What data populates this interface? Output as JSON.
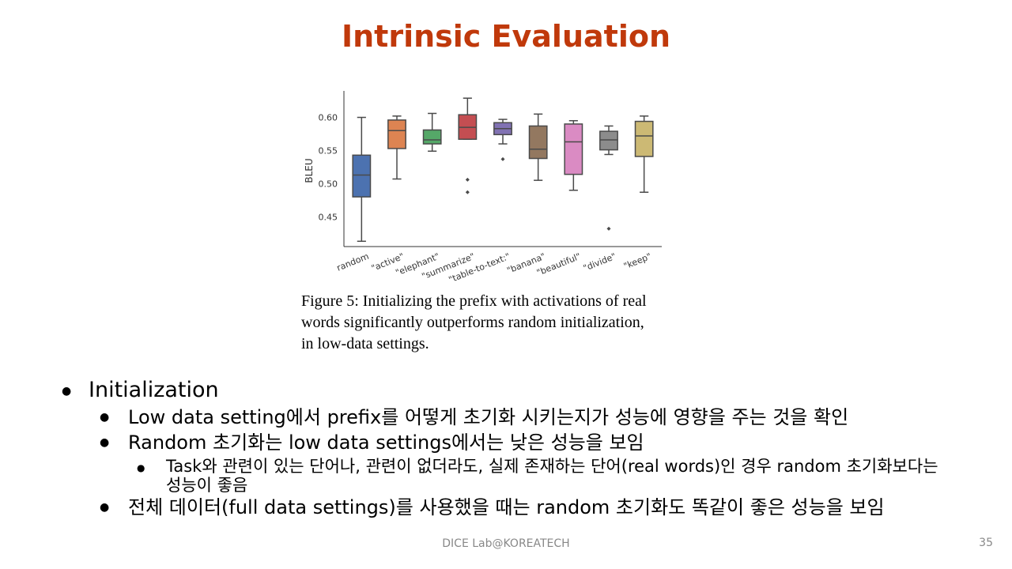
{
  "slide": {
    "title": "Intrinsic Evaluation",
    "footer": "DICE  Lab@KOREATECH",
    "page_number": "35"
  },
  "figure": {
    "caption_lines": [
      "Figure 5:  Initializing the prefix with activations of real",
      "words significantly outperforms random initialization,",
      "in low-data settings."
    ]
  },
  "bullets": {
    "b1": "Initialization",
    "b1_1": "Low data setting에서 prefix를 어떻게 초기화 시키는지가 성능에 영향을 주는 것을 확인",
    "b1_2": "Random 초기화는 low data settings에서는 낮은 성능을 보임",
    "b1_2_1": "Task와 관련이 있는 단어나, 관련이 없더라도, 실제 존재하는 단어(real words)인 경우 random 초기화보다는 성능이 좋음",
    "b1_3": "전체 데이터(full data settings)를 사용했을 때는 random 초기화도 똑같이 좋은 성능을 보임"
  },
  "chart_data": {
    "type": "box",
    "ylabel": "BLEU",
    "ylim": [
      0.405,
      0.64
    ],
    "yticks": [
      0.45,
      0.5,
      0.55,
      0.6
    ],
    "ytick_labels": [
      "0.45",
      "0.50",
      "0.55",
      "0.60"
    ],
    "grid": false,
    "categories": [
      "random",
      "\"active\"",
      "\"elephant\"",
      "\"summarize\"",
      "\"table-to-text:\"",
      "\"banana\"",
      "\"beautiful\"",
      "\"divide\"",
      "\"keep\""
    ],
    "colors": [
      "#4c72b0",
      "#dd8452",
      "#55a868",
      "#c44e52",
      "#8172b3",
      "#937860",
      "#da8bc3",
      "#8c8c8c",
      "#ccb974"
    ],
    "boxes": [
      {
        "whislo": 0.413,
        "q1": 0.48,
        "med": 0.513,
        "q3": 0.543,
        "whishi": 0.6,
        "fliers": []
      },
      {
        "whislo": 0.507,
        "q1": 0.553,
        "med": 0.58,
        "q3": 0.596,
        "whishi": 0.602,
        "fliers": []
      },
      {
        "whislo": 0.549,
        "q1": 0.56,
        "med": 0.566,
        "q3": 0.581,
        "whishi": 0.606,
        "fliers": []
      },
      {
        "whislo": 0.567,
        "q1": 0.567,
        "med": 0.585,
        "q3": 0.604,
        "whishi": 0.629,
        "fliers": [
          0.506,
          0.487
        ]
      },
      {
        "whislo": 0.56,
        "q1": 0.574,
        "med": 0.583,
        "q3": 0.592,
        "whishi": 0.597,
        "fliers": [
          0.537
        ]
      },
      {
        "whislo": 0.505,
        "q1": 0.538,
        "med": 0.552,
        "q3": 0.587,
        "whishi": 0.605,
        "fliers": []
      },
      {
        "whislo": 0.49,
        "q1": 0.514,
        "med": 0.563,
        "q3": 0.59,
        "whishi": 0.595,
        "fliers": []
      },
      {
        "whislo": 0.544,
        "q1": 0.551,
        "med": 0.566,
        "q3": 0.579,
        "whishi": 0.587,
        "fliers": [
          0.432
        ]
      },
      {
        "whislo": 0.487,
        "q1": 0.541,
        "med": 0.572,
        "q3": 0.594,
        "whishi": 0.602,
        "fliers": []
      }
    ]
  }
}
